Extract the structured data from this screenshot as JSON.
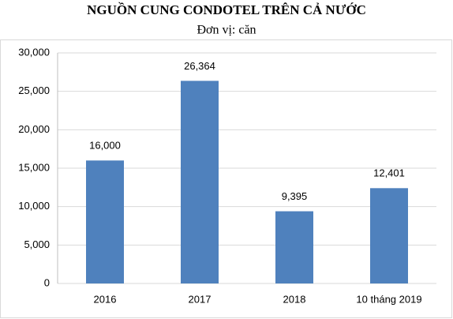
{
  "chart_data": {
    "type": "bar",
    "title": "NGUỒN CUNG CONDOTEL TRÊN CẢ NƯỚC",
    "subtitle": "Đơn vị: căn",
    "categories": [
      "2016",
      "2017",
      "2018",
      "10 tháng 2019"
    ],
    "values": [
      16000,
      26364,
      9395,
      12401
    ],
    "value_labels": [
      "16,000",
      "26,364",
      "9,395",
      "12,401"
    ],
    "color": "#4f81bd",
    "ylim": [
      0,
      30000
    ],
    "yticks": [
      0,
      {
        "value": 5000,
        "label": "5,000"
      },
      {
        "value": 10000,
        "label": "10,000"
      },
      {
        "value": 15000,
        "label": "15,000"
      },
      {
        "value": 20000,
        "label": "20,000"
      },
      {
        "value": 25000,
        "label": "25,000"
      },
      {
        "value": 30000,
        "label": "30,000"
      }
    ],
    "grid": true
  }
}
